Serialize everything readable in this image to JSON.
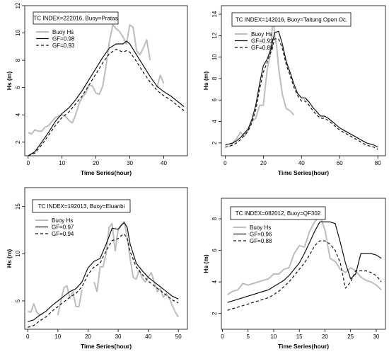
{
  "chart_data": [
    {
      "type": "line",
      "title": "TC INDEX=222016, Buoy=Pratas",
      "xlabel": "Time Series(hour)",
      "ylabel": "Hs (m)",
      "xlim": [
        -1,
        47
      ],
      "ylim": [
        1,
        12
      ],
      "xticks": [
        0,
        10,
        20,
        30,
        40
      ],
      "yticks": [
        2,
        4,
        6,
        8,
        10,
        12
      ],
      "legend_position": "top-left",
      "series": [
        {
          "name": "Buoy Hs",
          "style": "gray",
          "x": [
            0,
            1,
            2,
            3,
            4,
            5,
            6,
            7,
            8,
            9,
            10,
            11,
            12,
            13,
            14,
            15,
            16,
            17,
            18,
            19,
            20,
            21,
            22,
            23,
            24,
            25,
            26,
            27,
            28,
            29,
            30,
            31,
            32,
            33,
            34,
            35,
            36,
            37,
            38,
            39,
            40,
            41,
            42,
            43,
            44,
            45,
            46
          ],
          "y": [
            2.7,
            2.6,
            2.9,
            2.8,
            2.8,
            3.1,
            3.2,
            3.5,
            3.8,
            3.9,
            4.0,
            3.9,
            3.6,
            3.4,
            4.0,
            4.8,
            5.3,
            5.6,
            6.2,
            6.1,
            5.6,
            5.5,
            6.1,
            7.6,
            9.4,
            10.6,
            10.3,
            10.1,
            9.7,
            9.2,
            10.6,
            10.4,
            8.7,
            8.4,
            8.9,
            9.5,
            8.0,
            null,
            6.0,
            6.9,
            6.3,
            null,
            null,
            null,
            null,
            null,
            null
          ]
        },
        {
          "name": "GF=0.98",
          "style": "solid",
          "x": [
            0,
            2,
            4,
            6,
            8,
            10,
            12,
            14,
            16,
            18,
            20,
            22,
            24,
            26,
            28,
            29,
            30,
            32,
            34,
            36,
            38,
            40,
            42,
            44,
            46
          ],
          "y": [
            1.0,
            1.3,
            2.0,
            2.7,
            3.5,
            4.1,
            4.5,
            5.1,
            5.8,
            6.6,
            7.4,
            8.2,
            8.9,
            9.2,
            9.2,
            9.4,
            9.2,
            8.4,
            7.6,
            6.8,
            6.1,
            5.7,
            5.4,
            5.0,
            4.6
          ]
        },
        {
          "name": "GF=0.93",
          "style": "dashed",
          "x": [
            0,
            2,
            4,
            6,
            8,
            10,
            12,
            14,
            16,
            18,
            20,
            22,
            24,
            26,
            28,
            29,
            30,
            32,
            34,
            36,
            38,
            40,
            42,
            44,
            46
          ],
          "y": [
            1.0,
            1.2,
            1.8,
            2.5,
            3.2,
            3.8,
            4.2,
            4.8,
            5.4,
            6.2,
            7.0,
            7.8,
            8.5,
            8.8,
            8.6,
            8.7,
            8.6,
            7.9,
            7.1,
            6.4,
            5.8,
            5.4,
            5.1,
            4.7,
            4.3
          ]
        }
      ]
    },
    {
      "type": "line",
      "title": "TC INDEX=142016, Buoy=Taitung Open Oc.",
      "xlabel": "Time Series(hour)",
      "ylabel": "Hs (m)",
      "xlim": [
        -2,
        84
      ],
      "ylim": [
        0.8,
        14.8
      ],
      "xticks": [
        0,
        20,
        40,
        60,
        80
      ],
      "yticks": [
        2,
        4,
        6,
        8,
        10,
        12,
        14
      ],
      "legend_position": "top-left",
      "series": [
        {
          "name": "Buoy Hs",
          "style": "gray",
          "x": [
            2,
            4,
            6,
            8,
            10,
            12,
            14,
            16,
            18,
            20,
            22,
            24,
            25,
            26,
            27,
            28,
            30,
            32,
            34,
            36
          ],
          "y": [
            1.6,
            2.0,
            2.4,
            3.0,
            2.6,
            3.2,
            4.0,
            4.3,
            5.5,
            5.5,
            8.8,
            10.5,
            14.0,
            12.0,
            11.0,
            9.0,
            6.5,
            5.2,
            5.0,
            4.6
          ]
        },
        {
          "name": "GF=0.92",
          "style": "solid",
          "x": [
            0,
            2,
            4,
            6,
            8,
            10,
            12,
            14,
            16,
            18,
            20,
            22,
            24,
            26,
            28,
            30,
            32,
            34,
            36,
            38,
            40,
            42,
            44,
            46,
            48,
            50,
            52,
            54,
            56,
            58,
            60,
            62,
            64,
            66,
            68,
            70,
            72,
            74,
            76,
            78,
            80
          ],
          "y": [
            1.8,
            1.9,
            2.0,
            2.2,
            2.5,
            2.9,
            3.3,
            4.2,
            5.5,
            7.5,
            9.2,
            9.8,
            10.8,
            12.3,
            12.4,
            11.2,
            9.6,
            8.6,
            7.5,
            6.6,
            6.2,
            6.2,
            5.8,
            5.3,
            4.9,
            4.5,
            4.5,
            4.3,
            4.0,
            3.7,
            3.4,
            3.2,
            3.0,
            2.8,
            2.6,
            2.4,
            2.2,
            2.0,
            1.9,
            1.8,
            1.6
          ]
        },
        {
          "name": "GF=0.88",
          "style": "dashed",
          "x": [
            0,
            2,
            4,
            6,
            8,
            10,
            12,
            14,
            16,
            18,
            20,
            22,
            24,
            26,
            28,
            30,
            32,
            34,
            36,
            38,
            40,
            42,
            44,
            46,
            48,
            50,
            52,
            54,
            56,
            58,
            60,
            62,
            64,
            66,
            68,
            70,
            72,
            74,
            76,
            78,
            80
          ],
          "y": [
            1.6,
            1.7,
            1.8,
            2.0,
            2.3,
            2.7,
            3.1,
            3.9,
            5.1,
            7.0,
            8.6,
            9.5,
            10.5,
            11.7,
            11.7,
            10.8,
            9.3,
            8.3,
            7.2,
            6.4,
            5.9,
            5.9,
            5.5,
            5.0,
            4.6,
            4.3,
            4.3,
            4.1,
            3.8,
            3.5,
            3.2,
            3.0,
            2.8,
            2.6,
            2.4,
            2.2,
            2.0,
            1.8,
            1.7,
            1.6,
            1.4
          ]
        }
      ]
    },
    {
      "type": "line",
      "title": "TC INDEX=192013, Buoy=Eluanbi",
      "xlabel": "Time Series(hour)",
      "ylabel": "Hs (m)",
      "xlim": [
        -1,
        53
      ],
      "ylim": [
        2,
        17
      ],
      "xticks": [
        0,
        10,
        20,
        30,
        40,
        50
      ],
      "yticks": [
        5,
        10,
        15
      ],
      "legend_position": "top-left",
      "series": [
        {
          "name": "Buoy Hs",
          "style": "gray",
          "x": [
            0,
            1,
            2,
            3,
            4,
            5,
            6,
            7,
            8,
            9,
            10,
            11,
            12,
            13,
            14,
            15,
            16,
            17,
            18,
            19,
            20,
            21,
            22,
            23,
            24,
            25,
            26,
            27,
            28,
            29,
            30,
            31,
            32,
            33,
            34,
            35,
            36,
            37,
            38,
            39,
            40,
            41,
            42,
            43,
            44,
            45,
            46,
            47,
            48,
            49,
            50
          ],
          "y": [
            3.9,
            3.8,
            4.7,
            3.8,
            3.5,
            3.6,
            null,
            null,
            null,
            null,
            3.5,
            5.0,
            6.4,
            6.6,
            5.3,
            6.0,
            4.4,
            4.4,
            6.2,
            null,
            null,
            null,
            7.0,
            6.0,
            8.6,
            8.6,
            10.0,
            12.8,
            13.2,
            10.3,
            12.5,
            13.0,
            13.4,
            11.8,
            9.4,
            7.5,
            7.3,
            8.3,
            7.4,
            7.0,
            7.5,
            8.0,
            7.0,
            6.0,
            6.3,
            5.4,
            5.8,
            5.3,
            4.5,
            3.8,
            3.3
          ]
        },
        {
          "name": "GF=0.97",
          "style": "solid",
          "x": [
            0,
            2,
            4,
            6,
            8,
            10,
            12,
            14,
            16,
            18,
            20,
            22,
            24,
            26,
            28,
            30,
            31,
            32,
            33,
            34,
            36,
            38,
            40,
            42,
            44,
            46,
            48,
            50
          ],
          "y": [
            2.8,
            3.0,
            3.5,
            3.9,
            4.5,
            5.0,
            5.5,
            6.0,
            6.3,
            7.0,
            8.5,
            9.2,
            9.5,
            11.0,
            12.7,
            12.6,
            13.0,
            13.3,
            12.8,
            11.0,
            9.0,
            8.2,
            7.5,
            7.0,
            6.5,
            6.0,
            5.5,
            5.2
          ]
        },
        {
          "name": "GF=0.94",
          "style": "dashed",
          "x": [
            0,
            2,
            4,
            6,
            8,
            10,
            12,
            14,
            16,
            18,
            20,
            22,
            24,
            26,
            28,
            30,
            31,
            32,
            33,
            34,
            36,
            38,
            40,
            42,
            44,
            46,
            48,
            50
          ],
          "y": [
            2.2,
            2.4,
            2.9,
            3.3,
            3.9,
            4.4,
            4.9,
            5.4,
            5.8,
            6.5,
            7.8,
            8.6,
            9.0,
            10.3,
            11.4,
            11.6,
            11.9,
            12.1,
            11.6,
            10.2,
            8.6,
            7.8,
            7.1,
            6.6,
            6.1,
            5.6,
            5.1,
            4.8
          ]
        }
      ]
    },
    {
      "type": "line",
      "title": "TC INDEX=082012, Buoy=QF302",
      "xlabel": "Time Series(hour)",
      "ylabel": "Hs (m)",
      "xlim": [
        -0.2,
        31.8
      ],
      "ylim": [
        1,
        9.3
      ],
      "xticks": [
        0,
        5,
        10,
        15,
        20,
        25,
        30
      ],
      "yticks": [
        2,
        4,
        6,
        8
      ],
      "legend_position": "top-left",
      "series": [
        {
          "name": "Buoy Hs",
          "style": "gray",
          "x": [
            1,
            2,
            3,
            4,
            5,
            6,
            7,
            8,
            9,
            10,
            11,
            12,
            13,
            14,
            15,
            16,
            17,
            18,
            19,
            20,
            21,
            22,
            23,
            24,
            25,
            26,
            27,
            28,
            29,
            30,
            31
          ],
          "y": [
            3.2,
            3.4,
            3.5,
            3.9,
            3.8,
            3.9,
            4.0,
            4.1,
            4.2,
            4.5,
            4.5,
            4.8,
            4.9,
            5.8,
            6.3,
            6.2,
            7.2,
            7.8,
            8.2,
            7.3,
            5.5,
            5.3,
            4.8,
            4.6,
            4.9,
            4.7,
            4.3,
            4.1,
            4.0,
            3.8,
            3.5
          ]
        },
        {
          "name": "GF=0.96",
          "style": "solid",
          "x": [
            1,
            2,
            3,
            4,
            5,
            6,
            7,
            8,
            9,
            10,
            11,
            12,
            13,
            14,
            15,
            16,
            17,
            18,
            19,
            20,
            21,
            22,
            23,
            24,
            25,
            26,
            27,
            28,
            29,
            30,
            31
          ],
          "y": [
            2.7,
            2.8,
            2.9,
            3.0,
            3.1,
            3.2,
            3.3,
            3.4,
            3.5,
            3.7,
            3.9,
            4.1,
            4.4,
            4.8,
            5.2,
            5.8,
            6.5,
            7.2,
            7.8,
            7.8,
            7.8,
            7.7,
            6.5,
            5.2,
            4.2,
            4.5,
            5.8,
            5.8,
            5.8,
            5.7,
            5.5
          ]
        },
        {
          "name": "GF=0.88",
          "style": "dashed",
          "x": [
            1,
            2,
            3,
            4,
            5,
            6,
            7,
            8,
            9,
            10,
            11,
            12,
            13,
            14,
            15,
            16,
            17,
            18,
            19,
            20,
            21,
            22,
            23,
            24,
            25,
            26,
            27,
            28,
            29,
            30,
            31
          ],
          "y": [
            2.2,
            2.3,
            2.4,
            2.5,
            2.6,
            2.7,
            2.8,
            2.9,
            3.0,
            3.2,
            3.4,
            3.7,
            4.0,
            4.4,
            4.8,
            5.2,
            5.7,
            6.3,
            6.6,
            6.6,
            6.4,
            6.0,
            5.2,
            3.6,
            4.0,
            4.7,
            4.7,
            4.7,
            4.6,
            4.4,
            4.0
          ]
        }
      ]
    }
  ]
}
